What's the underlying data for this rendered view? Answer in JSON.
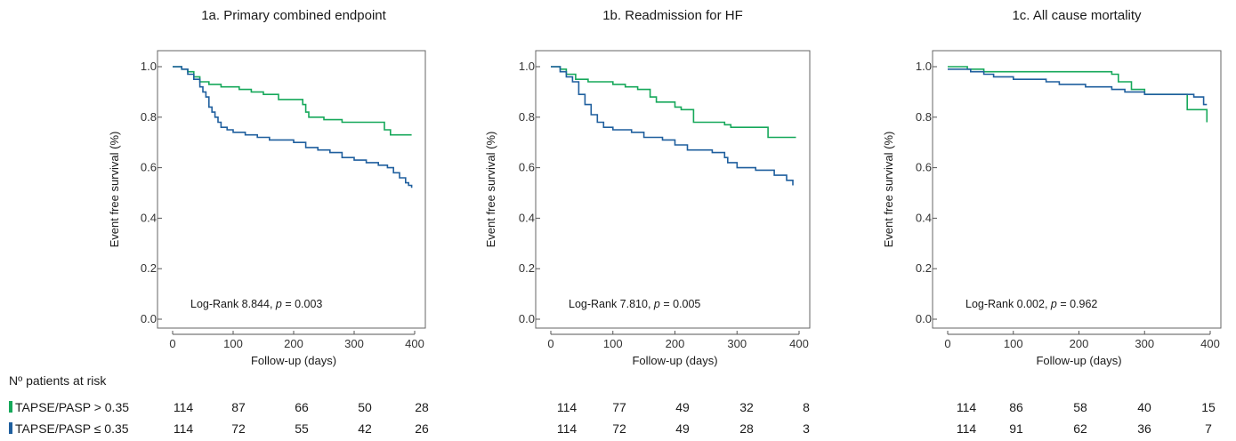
{
  "colors": {
    "above": "#16a85a",
    "below": "#1f5f9e",
    "axis": "#555555",
    "frame": "#666666"
  },
  "risk_table": {
    "title": "Nº patients at risk",
    "rows": [
      {
        "label": "TAPSE/PASP > 0.35",
        "color": "#16a85a",
        "counts": [
          [
            114,
            87,
            66,
            50,
            28
          ],
          [
            114,
            77,
            49,
            32,
            8
          ],
          [
            114,
            86,
            58,
            40,
            15
          ]
        ]
      },
      {
        "label": "TAPSE/PASP ≤ 0.35",
        "color": "#1f5f9e",
        "counts": [
          [
            114,
            72,
            55,
            42,
            26
          ],
          [
            114,
            72,
            49,
            28,
            3
          ],
          [
            114,
            91,
            62,
            36,
            7
          ]
        ]
      }
    ]
  },
  "chart_data": [
    {
      "type": "line",
      "step": true,
      "title": "1a. Primary combined endpoint",
      "xlabel": "Follow-up (days)",
      "ylabel": "Event free survival (%)",
      "xlim": [
        0,
        400
      ],
      "ylim": [
        0.0,
        1.0
      ],
      "xticks": [
        0,
        100,
        200,
        300,
        400
      ],
      "yticks": [
        "0.0",
        "0.2",
        "0.4",
        "0.6",
        "0.8",
        "1.0"
      ],
      "annotation": {
        "prefix": "Log-Rank 8.844, ",
        "p": "p",
        "suffix": " = 0.003"
      },
      "series": [
        {
          "color": "#16a85a",
          "x": [
            0,
            15,
            25,
            35,
            45,
            60,
            80,
            110,
            130,
            150,
            175,
            215,
            220,
            225,
            250,
            280,
            350,
            360,
            395
          ],
          "y": [
            1.0,
            0.99,
            0.98,
            0.96,
            0.94,
            0.93,
            0.92,
            0.91,
            0.9,
            0.89,
            0.87,
            0.85,
            0.82,
            0.8,
            0.79,
            0.78,
            0.75,
            0.73,
            0.73
          ]
        },
        {
          "color": "#1f5f9e",
          "x": [
            0,
            15,
            25,
            35,
            45,
            50,
            55,
            60,
            65,
            70,
            75,
            80,
            90,
            100,
            120,
            140,
            160,
            200,
            220,
            240,
            260,
            280,
            300,
            320,
            340,
            355,
            365,
            375,
            385,
            390,
            395
          ],
          "y": [
            1.0,
            0.99,
            0.97,
            0.95,
            0.92,
            0.9,
            0.88,
            0.84,
            0.82,
            0.8,
            0.78,
            0.76,
            0.75,
            0.74,
            0.73,
            0.72,
            0.71,
            0.7,
            0.68,
            0.67,
            0.66,
            0.64,
            0.63,
            0.62,
            0.61,
            0.6,
            0.58,
            0.56,
            0.54,
            0.53,
            0.52
          ]
        }
      ]
    },
    {
      "type": "line",
      "step": true,
      "title": "1b. Readmission for HF",
      "xlabel": "Follow-up (days)",
      "ylabel": "Event free survival (%)",
      "xlim": [
        0,
        400
      ],
      "ylim": [
        0.0,
        1.0
      ],
      "xticks": [
        0,
        100,
        200,
        300,
        400
      ],
      "yticks": [
        "0.0",
        "0.2",
        "0.4",
        "0.6",
        "0.8",
        "1.0"
      ],
      "annotation": {
        "prefix": "Log-Rank 7.810, ",
        "p": "p",
        "suffix": " = 0.005"
      },
      "series": [
        {
          "color": "#16a85a",
          "x": [
            0,
            15,
            25,
            40,
            60,
            100,
            120,
            140,
            160,
            170,
            200,
            210,
            230,
            280,
            290,
            350,
            395
          ],
          "y": [
            1.0,
            0.99,
            0.97,
            0.95,
            0.94,
            0.93,
            0.92,
            0.91,
            0.88,
            0.86,
            0.84,
            0.83,
            0.78,
            0.77,
            0.76,
            0.72,
            0.72
          ]
        },
        {
          "color": "#1f5f9e",
          "x": [
            0,
            15,
            25,
            35,
            45,
            55,
            65,
            75,
            85,
            100,
            130,
            150,
            180,
            200,
            220,
            260,
            280,
            285,
            300,
            330,
            360,
            380,
            390
          ],
          "y": [
            1.0,
            0.98,
            0.96,
            0.94,
            0.89,
            0.85,
            0.81,
            0.78,
            0.76,
            0.75,
            0.74,
            0.72,
            0.71,
            0.69,
            0.67,
            0.66,
            0.64,
            0.62,
            0.6,
            0.59,
            0.57,
            0.55,
            0.53
          ]
        }
      ]
    },
    {
      "type": "line",
      "step": true,
      "title": "1c. All cause mortality",
      "xlabel": "Follow-up (days)",
      "ylabel": "Event free survival (%)",
      "xlim": [
        0,
        400
      ],
      "ylim": [
        0.0,
        1.0
      ],
      "xticks": [
        0,
        100,
        200,
        300,
        400
      ],
      "yticks": [
        "0.0",
        "0.2",
        "0.4",
        "0.6",
        "0.8",
        "1.0"
      ],
      "annotation": {
        "prefix": "Log-Rank 0.002, ",
        "p": "p",
        "suffix": " = 0.962"
      },
      "series": [
        {
          "color": "#16a85a",
          "x": [
            0,
            30,
            55,
            250,
            260,
            280,
            300,
            350,
            365,
            395
          ],
          "y": [
            1.0,
            0.99,
            0.98,
            0.97,
            0.94,
            0.91,
            0.89,
            0.89,
            0.83,
            0.78
          ]
        },
        {
          "color": "#1f5f9e",
          "x": [
            0,
            35,
            55,
            70,
            100,
            150,
            170,
            210,
            250,
            270,
            300,
            340,
            355,
            375,
            390,
            395
          ],
          "y": [
            0.99,
            0.98,
            0.97,
            0.96,
            0.95,
            0.94,
            0.93,
            0.92,
            0.91,
            0.9,
            0.89,
            0.89,
            0.89,
            0.88,
            0.85,
            0.85
          ]
        }
      ]
    }
  ]
}
